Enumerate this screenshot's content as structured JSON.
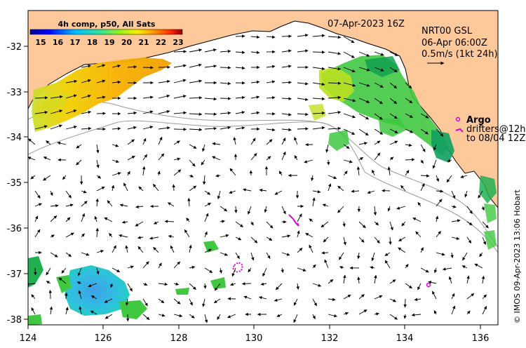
{
  "map": {
    "date_label": "07-Apr-2023 16Z",
    "current_info": {
      "line1": "NRT00 GSL",
      "line2": "06-Apr 06:00Z",
      "line3": "0.5m/s (1kt 24h)"
    },
    "argo": {
      "title": "Argo",
      "line1": "drifters@12h",
      "line2": "to 08/04 12Z"
    },
    "credit": "© IMOS 09-Apr-2023 13:06 Hobart",
    "colorbar": {
      "title": "4h comp, p50, All Sats",
      "ticks": [
        "15",
        "16",
        "17",
        "18",
        "19",
        "20",
        "21",
        "22",
        "23"
      ]
    },
    "x_ticks": [
      "124",
      "126",
      "128",
      "130",
      "132",
      "134",
      "136"
    ],
    "y_ticks": [
      "-32",
      "-33",
      "-34",
      "-35",
      "-36",
      "-37",
      "-38"
    ],
    "colors": {
      "land": "#fdc99b",
      "ocean": "#ffffff",
      "argo": "#e000e0",
      "coastline": "#000000",
      "bathymetry": "#9a9a9a"
    }
  }
}
